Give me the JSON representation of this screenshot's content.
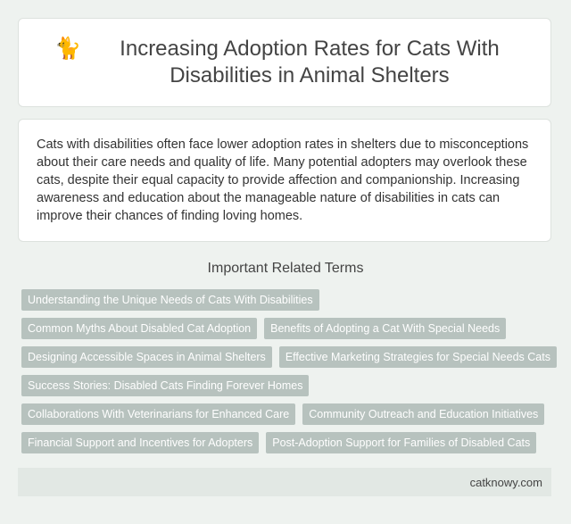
{
  "header": {
    "icon": "cat-icon",
    "title": "Increasing Adoption Rates for Cats With Disabilities in Animal Shelters"
  },
  "description": "Cats with disabilities often face lower adoption rates in shelters due to misconceptions about their care needs and quality of life. Many potential adopters may overlook these cats, despite their equal capacity to provide affection and companionship. Increasing awareness and education about the manageable nature of disabilities in cats can improve their chances of finding loving homes.",
  "terms_heading": "Important Related Terms",
  "terms": [
    "Understanding the Unique Needs of Cats With Disabilities",
    "Common Myths About Disabled Cat Adoption",
    "Benefits of Adopting a Cat With Special Needs",
    "Designing Accessible Spaces in Animal Shelters",
    "Effective Marketing Strategies for Special Needs Cats",
    "Success Stories: Disabled Cats Finding Forever Homes",
    "Collaborations With Veterinarians for Enhanced Care",
    "Community Outreach and Education Initiatives",
    "Financial Support and Incentives for Adopters",
    "Post-Adoption Support for Families of Disabled Cats"
  ],
  "footer": {
    "site": "catknowy.com"
  },
  "colors": {
    "background": "#eef2ef",
    "tag": "#b7c2be",
    "footer": "#e2e8e4"
  }
}
